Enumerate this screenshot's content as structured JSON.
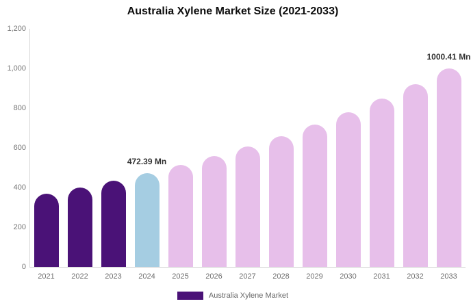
{
  "chart_data": {
    "type": "bar",
    "title": "Australia Xylene Market Size (2021-2033)",
    "xlabel": "",
    "ylabel": "",
    "ylim": [
      0,
      1200
    ],
    "grid": false,
    "categories": [
      "2021",
      "2022",
      "2023",
      "2024",
      "2025",
      "2026",
      "2027",
      "2028",
      "2029",
      "2030",
      "2031",
      "2032",
      "2033"
    ],
    "values": [
      368,
      400,
      434,
      472.39,
      513,
      558,
      607,
      659,
      717,
      779,
      847,
      920,
      1000.41
    ],
    "bar_colors": [
      "#4A1277",
      "#4A1277",
      "#4A1277",
      "#A5CDE2",
      "#E7BFEA",
      "#E7BFEA",
      "#E7BFEA",
      "#E7BFEA",
      "#E7BFEA",
      "#E7BFEA",
      "#E7BFEA",
      "#E7BFEA",
      "#E7BFEA"
    ],
    "annotations": [
      {
        "category": "2024",
        "text": "472.39 Mn"
      },
      {
        "category": "2033",
        "text": "1000.41 Mn"
      }
    ],
    "y_ticks": [
      {
        "value": 1200,
        "label": "1,200"
      },
      {
        "value": 1000,
        "label": "1,000"
      },
      {
        "value": 800,
        "label": "800"
      },
      {
        "value": 600,
        "label": "600"
      },
      {
        "value": 400,
        "label": "400"
      },
      {
        "value": 200,
        "label": "200"
      },
      {
        "value": 0,
        "label": "0"
      }
    ],
    "legend": {
      "label": "Australia Xylene Market",
      "swatch_color": "#4A1277",
      "position": "bottom-center"
    }
  },
  "colors": {
    "background": "#FFFFFF",
    "axis_line": "#D8D8D8",
    "tick_text": "#747474",
    "title_text": "#0D0D0D",
    "annotation_text": "#333333",
    "series_past": "#4A1277",
    "series_current_year": "#A5CDE2",
    "series_forecast": "#E7BFEA"
  }
}
